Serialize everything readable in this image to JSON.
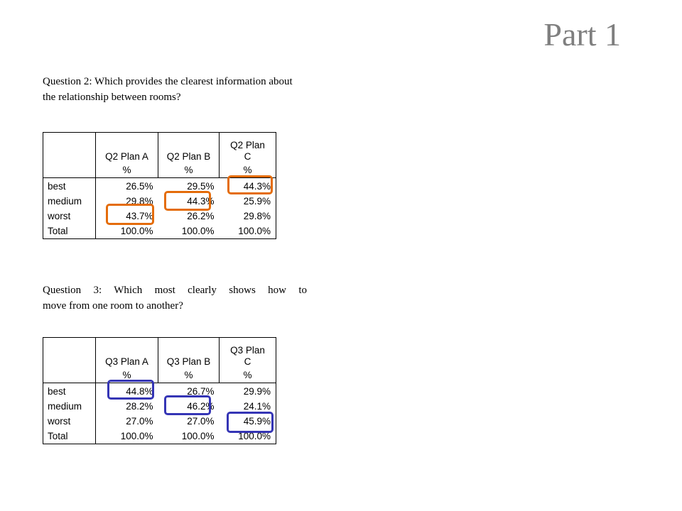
{
  "slide": {
    "title": "Part 1"
  },
  "question2": {
    "text": "Question 2: Which provides the clearest information about the relationship between rooms?",
    "table": {
      "headers": [
        "",
        "Q2 Plan A",
        "Q2 Plan B",
        "Q2 Plan C"
      ],
      "header_c_line1": "Q2 Plan",
      "header_c_line2": "C",
      "units": [
        "",
        "%",
        "%",
        "%"
      ],
      "rows": [
        {
          "label": "best",
          "values": [
            "26.5%",
            "29.5%",
            "44.3%"
          ]
        },
        {
          "label": "medium",
          "values": [
            "29.8%",
            "44.3%",
            "25.9%"
          ]
        },
        {
          "label": "worst",
          "values": [
            "43.7%",
            "26.2%",
            "29.8%"
          ]
        },
        {
          "label": "Total",
          "values": [
            "100.0%",
            "100.0%",
            "100.0%"
          ]
        }
      ]
    },
    "highlight_color": "#e46c0a"
  },
  "question3": {
    "text_line1": "Question 3: Which most clearly shows how to",
    "text_line2": "move from one room to another?",
    "table": {
      "headers": [
        "",
        "Q3 Plan A",
        "Q3 Plan B",
        "Q3 Plan C"
      ],
      "header_c_line1": "Q3 Plan",
      "header_c_line2": "C",
      "units": [
        "",
        "%",
        "%",
        "%"
      ],
      "rows": [
        {
          "label": "best",
          "values": [
            "44.8%",
            "26.7%",
            "29.9%"
          ]
        },
        {
          "label": "medium",
          "values": [
            "28.2%",
            "46.2%",
            "24.1%"
          ]
        },
        {
          "label": "worst",
          "values": [
            "27.0%",
            "27.0%",
            "45.9%"
          ]
        },
        {
          "label": "Total",
          "values": [
            "100.0%",
            "100.0%",
            "100.0%"
          ]
        }
      ]
    },
    "highlight_color": "#3535b5"
  }
}
